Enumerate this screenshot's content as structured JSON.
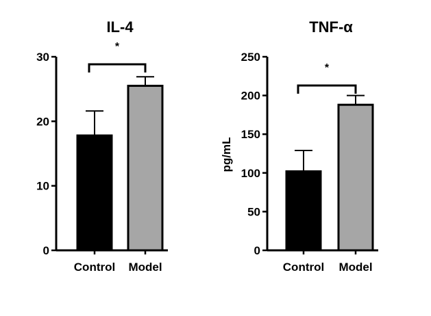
{
  "chart_data": [
    {
      "type": "bar",
      "title": "IL-4",
      "xlabel": "",
      "ylabel": "",
      "categories": [
        "Control",
        "Model"
      ],
      "values": [
        17.8,
        25.5
      ],
      "errors": [
        3.8,
        1.4
      ],
      "bar_colors": [
        "#000000",
        "#a6a6a6"
      ],
      "ylim": [
        0,
        30
      ],
      "yticks": [
        0,
        10,
        20,
        30
      ],
      "significance": "*",
      "grid": false
    },
    {
      "type": "bar",
      "title": "TNF-α",
      "xlabel": "",
      "ylabel": "pg/mL",
      "categories": [
        "Control",
        "Model"
      ],
      "values": [
        102,
        188
      ],
      "errors": [
        27,
        12
      ],
      "bar_colors": [
        "#000000",
        "#a6a6a6"
      ],
      "ylim": [
        0,
        250
      ],
      "yticks": [
        0,
        50,
        100,
        150,
        200,
        250
      ],
      "significance": "*",
      "grid": false
    }
  ]
}
